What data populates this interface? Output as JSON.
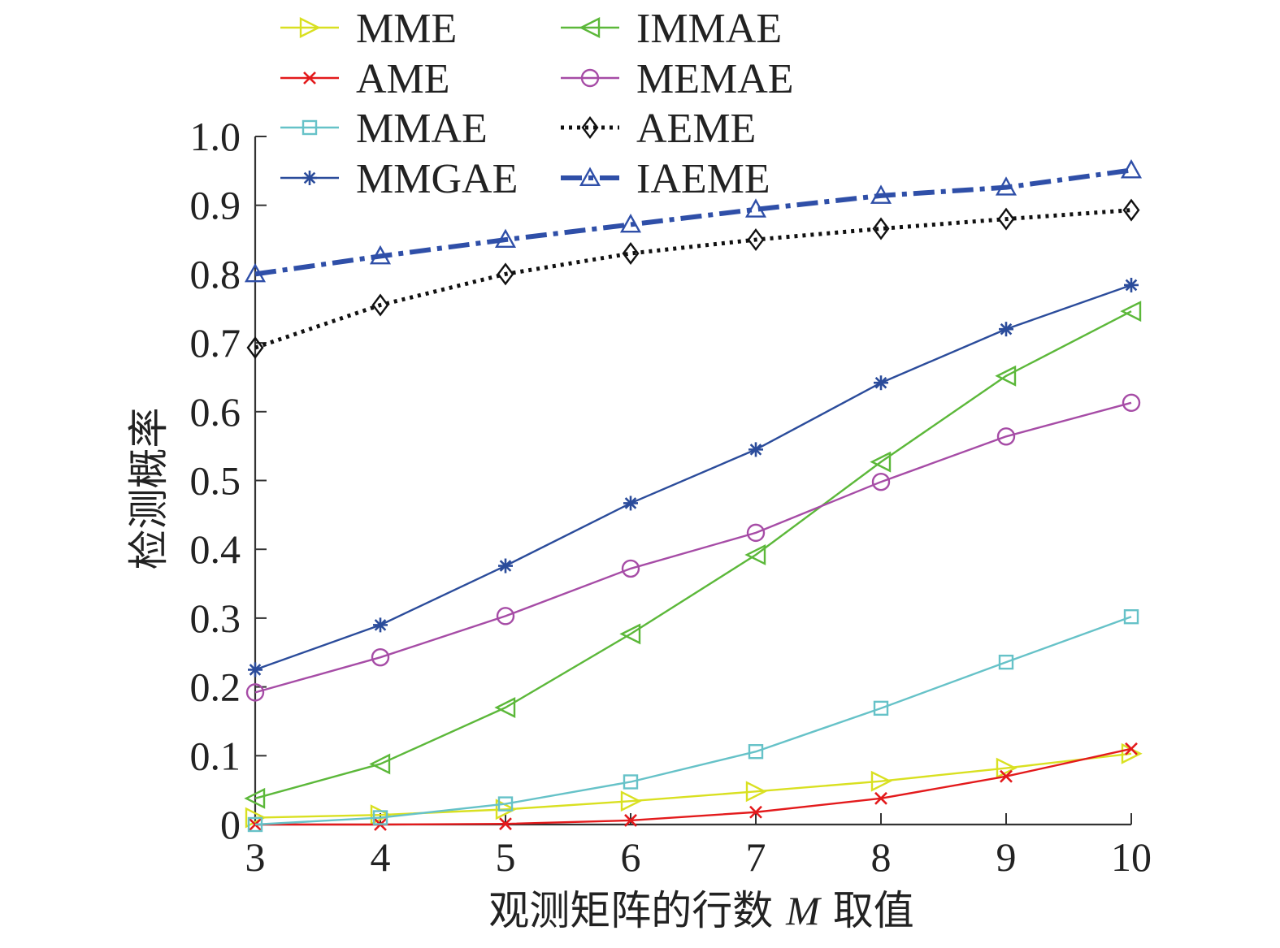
{
  "chart_data": {
    "type": "line",
    "title": "",
    "xlabel_prefix": "观测矩阵的行数",
    "xlabel_var": "M",
    "xlabel_suffix": "取值",
    "ylabel": "检测概率",
    "x": [
      3,
      4,
      5,
      6,
      7,
      8,
      9,
      10
    ],
    "xlim": [
      3,
      10
    ],
    "ylim": [
      0,
      1.0
    ],
    "xticks": [
      "3",
      "4",
      "5",
      "6",
      "7",
      "8",
      "9",
      "10"
    ],
    "yticks": [
      {
        "value": 0,
        "label": "0"
      },
      {
        "value": 0.1,
        "label": "0.1"
      },
      {
        "value": 0.2,
        "label": "0.2"
      },
      {
        "value": 0.3,
        "label": "0.3"
      },
      {
        "value": 0.4,
        "label": "0.4"
      },
      {
        "value": 0.5,
        "label": "0.5"
      },
      {
        "value": 0.6,
        "label": "0.6"
      },
      {
        "value": 0.7,
        "label": "0.7"
      },
      {
        "value": 0.8,
        "label": "0.8"
      },
      {
        "value": 0.9,
        "label": "0.9"
      },
      {
        "value": 1.0,
        "label": "1.0"
      }
    ],
    "grid": false,
    "legend_position": "top",
    "series": [
      {
        "name": "MME",
        "color": "#d9e021",
        "marker": "triangle-right",
        "dash": "solid",
        "values": [
          0.01,
          0.014,
          0.022,
          0.034,
          0.048,
          0.063,
          0.082,
          0.103
        ]
      },
      {
        "name": "AME",
        "color": "#e31a1c",
        "marker": "x",
        "dash": "solid",
        "values": [
          0.0,
          0.0,
          0.001,
          0.006,
          0.018,
          0.038,
          0.07,
          0.11
        ]
      },
      {
        "name": "MMAE",
        "color": "#66c2c8",
        "marker": "square",
        "dash": "solid",
        "values": [
          0.0,
          0.01,
          0.03,
          0.062,
          0.106,
          0.169,
          0.236,
          0.302
        ]
      },
      {
        "name": "MMGAE",
        "color": "#2b4c9b",
        "marker": "asterisk",
        "dash": "solid",
        "values": [
          0.225,
          0.29,
          0.376,
          0.467,
          0.545,
          0.642,
          0.72,
          0.784
        ]
      },
      {
        "name": "IMMAE",
        "color": "#5cb83a",
        "marker": "triangle-left",
        "dash": "solid",
        "values": [
          0.038,
          0.088,
          0.17,
          0.277,
          0.392,
          0.527,
          0.652,
          0.746
        ]
      },
      {
        "name": "MEMAE",
        "color": "#a64ca6",
        "marker": "circle",
        "dash": "solid",
        "values": [
          0.192,
          0.243,
          0.303,
          0.372,
          0.424,
          0.498,
          0.564,
          0.613
        ]
      },
      {
        "name": "AEME",
        "color": "#111111",
        "marker": "diamond",
        "dash": "dotted",
        "values": [
          0.693,
          0.755,
          0.8,
          0.83,
          0.85,
          0.866,
          0.88,
          0.893
        ]
      },
      {
        "name": "IAEME",
        "color": "#2f4fa8",
        "marker": "triangle-up",
        "dash": "dashdot",
        "values": [
          0.8,
          0.826,
          0.85,
          0.872,
          0.894,
          0.914,
          0.926,
          0.951
        ]
      }
    ]
  }
}
